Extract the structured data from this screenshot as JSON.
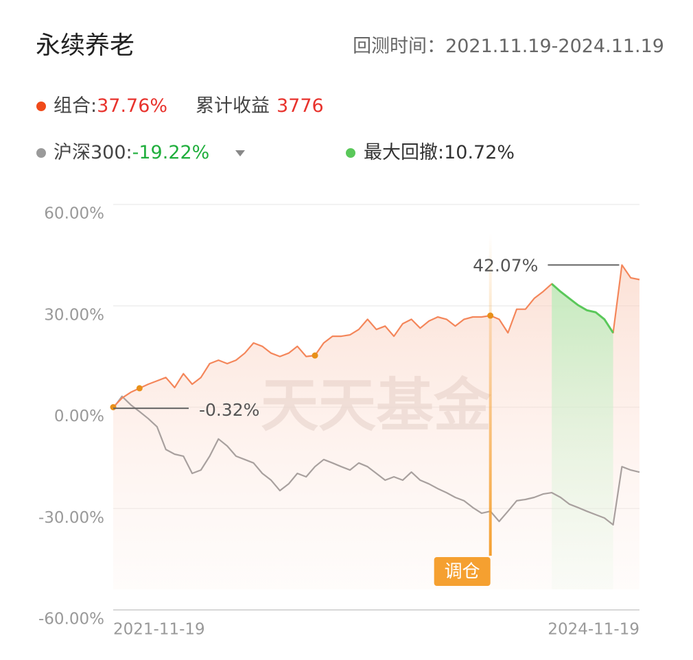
{
  "header": {
    "title": "永续养老",
    "period_label": "回测时间：",
    "period": "2021.11.19-2024.11.19"
  },
  "chart_data": {
    "type": "line",
    "categories": [
      "2021-11-19",
      null,
      null,
      null,
      null,
      null,
      null,
      null,
      null,
      null,
      null,
      null,
      null,
      null,
      null,
      null,
      null,
      null,
      null,
      null,
      null,
      null,
      null,
      null,
      null,
      null,
      null,
      null,
      null,
      null,
      null,
      null,
      null,
      null,
      null,
      null,
      null,
      null,
      null,
      null,
      null,
      null,
      null,
      null,
      null,
      null,
      null,
      null,
      null,
      null,
      null,
      null,
      null,
      null,
      null,
      null,
      null,
      null,
      null,
      null,
      "2024-11-19"
    ],
    "series": [
      {
        "name": "组合:",
        "color": "#f4865a",
        "return": {
          "value": 37.76,
          "label": "37.76%"
        },
        "return_color": "#e8322c",
        "cumulative_label": "累计收益",
        "cumulative": 3776,
        "values": [
          0,
          2.7,
          4.4,
          5.6,
          6.8,
          7.8,
          8.8,
          5.8,
          9.9,
          6.8,
          8.8,
          12.9,
          13.9,
          12.9,
          13.9,
          16,
          19,
          18,
          16,
          15,
          16,
          18,
          15,
          15.3,
          19,
          21,
          21,
          21.4,
          23,
          26,
          23,
          24,
          21,
          24.7,
          26,
          23.4,
          25.5,
          26.7,
          26,
          24,
          26,
          26.7,
          26.7,
          27.1,
          26,
          22,
          29,
          29,
          32.2,
          34.2,
          36.5,
          34.2,
          32.2,
          30.2,
          28.7,
          28.1,
          26,
          22,
          42.07,
          38.3,
          37.76
        ]
      },
      {
        "name": "沪深300:",
        "color": "#a8a09e",
        "return": {
          "value": -19.22,
          "label": "-19.22%"
        },
        "return_color": "#1fae3c",
        "values": [
          -0.32,
          3.2,
          0.7,
          -1.3,
          -3.4,
          -5.8,
          -12.5,
          -13.9,
          -14.5,
          -19.6,
          -18.6,
          -14.5,
          -9.4,
          -11.5,
          -14.5,
          -15.5,
          -16.5,
          -19.6,
          -21.6,
          -24.7,
          -22.7,
          -19.6,
          -20.6,
          -17.6,
          -15.5,
          -16.5,
          -17.6,
          -18.6,
          -16.5,
          -17.6,
          -19.6,
          -21.6,
          -20.6,
          -21.6,
          -19.2,
          -21.6,
          -22.7,
          -24.1,
          -25.3,
          -26.7,
          -27.7,
          -29.7,
          -31.4,
          -30.8,
          -33.8,
          -30.8,
          -27.7,
          -27.3,
          -26.7,
          -25.7,
          -25.3,
          -26.7,
          -28.7,
          -29.7,
          -30.8,
          -31.8,
          -32.8,
          -34.8,
          -17.6,
          -18.6,
          -19.22
        ]
      }
    ],
    "max_drawdown": {
      "name": "最大回撤:",
      "value": 10.72,
      "label": "10.72%",
      "color": "#5ac85a",
      "range": [
        50,
        57
      ]
    },
    "annotations": [
      {
        "label": "42.07%",
        "value": 42.07,
        "index": 58
      },
      {
        "label": "-0.32%",
        "value": -0.32,
        "index": 0
      }
    ],
    "rebalance": {
      "label": "调仓",
      "index": 43,
      "color": "#f5a030"
    },
    "marker_points": [
      0,
      3,
      23,
      43
    ],
    "watermark": "天天基金",
    "ylim": [
      -60,
      60
    ],
    "yticks": [
      {
        "value": -60,
        "label": "-60.00%"
      },
      {
        "value": -30,
        "label": "-30.00%"
      },
      {
        "value": 0,
        "label": "0.00%"
      },
      {
        "value": 30,
        "label": "30.00%"
      },
      {
        "value": 60,
        "label": "60.00%"
      }
    ],
    "grid": true
  }
}
